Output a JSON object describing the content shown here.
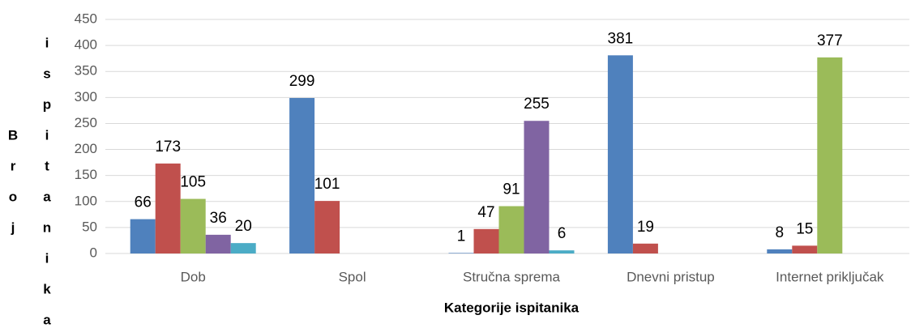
{
  "chart_data": {
    "type": "bar",
    "ylabel": "Broj ispitanika",
    "xlabel": "Kategorije ispitanika",
    "categories": [
      "Dob",
      "Spol",
      "Stručna sprema",
      "Dnevni pristup",
      "Internet priključak"
    ],
    "series": [
      {
        "color": "#4f81bd",
        "values": [
          66,
          299,
          1,
          381,
          8
        ]
      },
      {
        "color": "#c0504d",
        "values": [
          173,
          101,
          47,
          19,
          15
        ]
      },
      {
        "color": "#9bbb59",
        "values": [
          105,
          null,
          91,
          null,
          377
        ]
      },
      {
        "color": "#8064a2",
        "values": [
          36,
          null,
          255,
          null,
          null
        ]
      },
      {
        "color": "#4bacc6",
        "values": [
          20,
          null,
          6,
          null,
          null
        ]
      }
    ],
    "ylim": [
      0,
      450
    ],
    "yticks": [
      0,
      50,
      100,
      150,
      200,
      250,
      300,
      350,
      400,
      450
    ],
    "grid": true
  }
}
